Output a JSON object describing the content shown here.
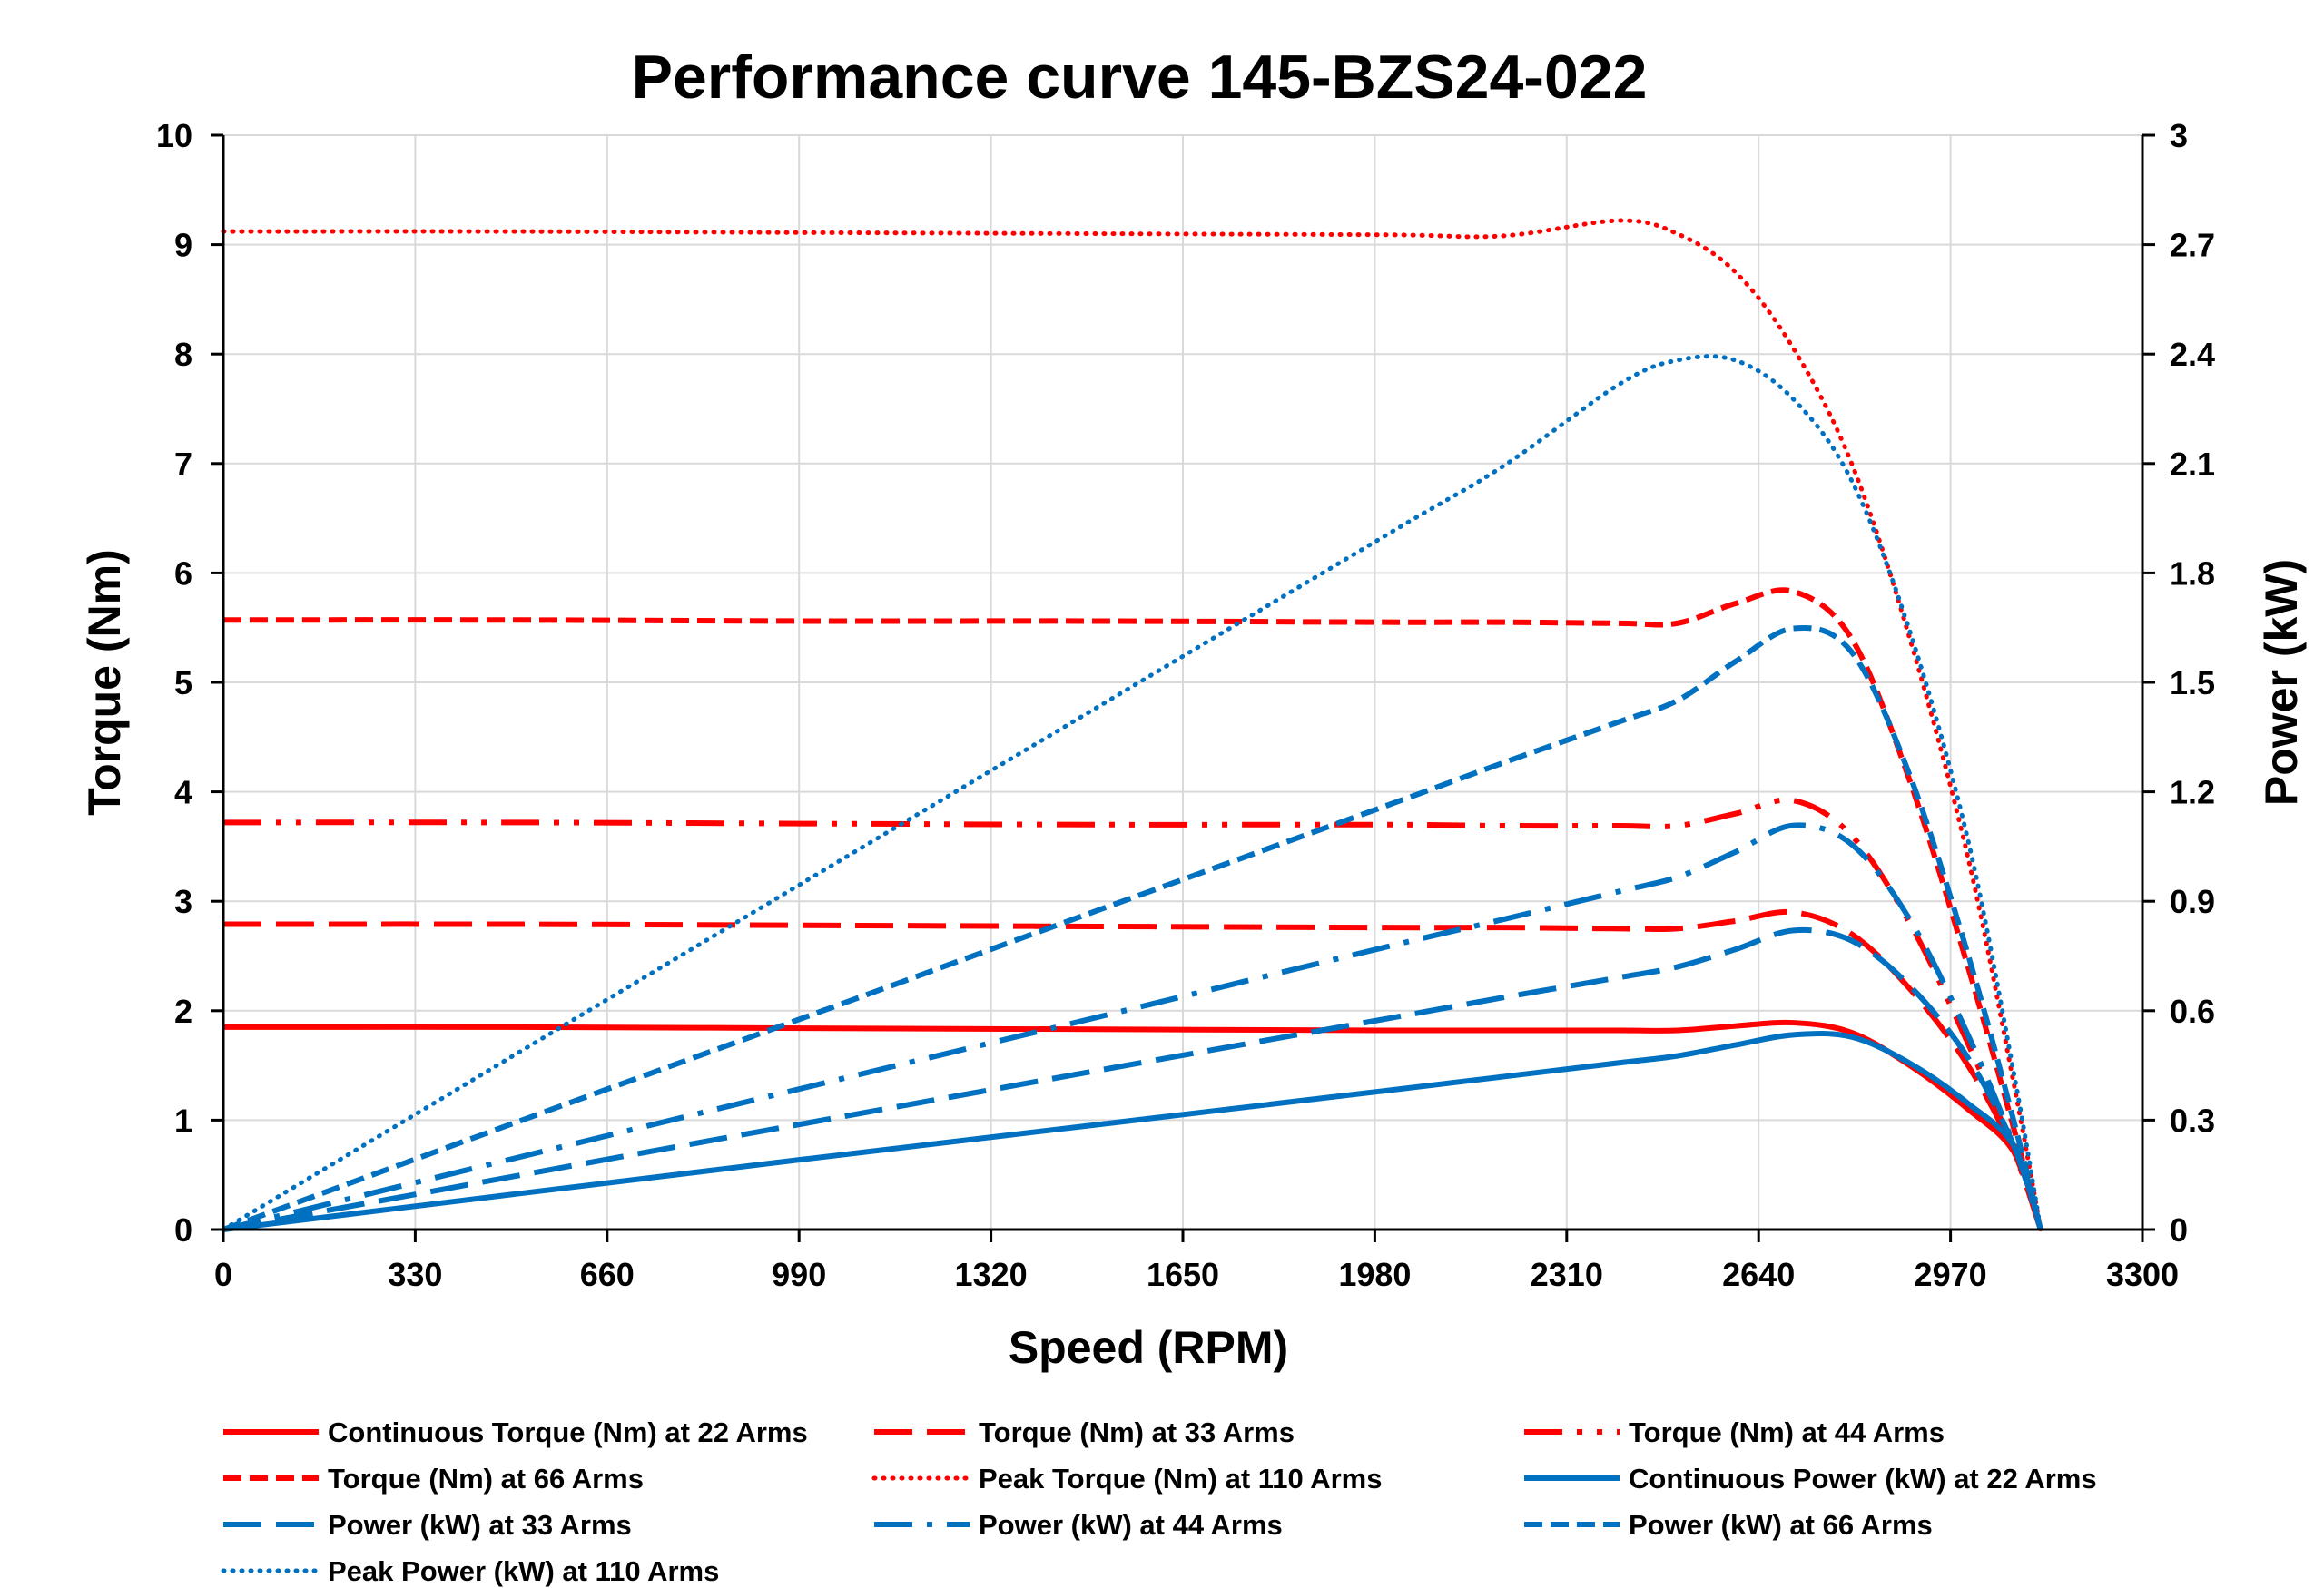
{
  "chart_data": {
    "type": "line",
    "title": "Performance curve 145-BZS24-022",
    "xlabel": "Speed (RPM)",
    "ylabel": "Torque (Nm)",
    "y2label": "Power (kW)",
    "xlim": [
      0,
      3300
    ],
    "ylim": [
      0,
      10
    ],
    "y2lim": [
      0,
      3
    ],
    "xticks": [
      0,
      330,
      660,
      990,
      1320,
      1650,
      1980,
      2310,
      2640,
      2970,
      3300
    ],
    "yticks": [
      0,
      1,
      2,
      3,
      4,
      5,
      6,
      7,
      8,
      9,
      10
    ],
    "y2ticks": [
      "0",
      "0.3",
      "0.6",
      "0.9",
      "1.2",
      "1.5",
      "1.8",
      "2.1",
      "2.4",
      "2.7",
      "3"
    ],
    "grid": true,
    "legend_placement": "bottom",
    "colors": {
      "torque": "#ff0000",
      "power": "#0070c0"
    },
    "x": [
      0,
      500,
      1000,
      1500,
      2000,
      2200,
      2400,
      2500,
      2600,
      2700,
      2800,
      2900,
      3000,
      3080,
      3125
    ],
    "series": [
      {
        "name": "Continuous Torque (Nm) at 22 Arms",
        "axis": "left",
        "color": "#ff0000",
        "dash": "solid",
        "values": [
          1.85,
          1.85,
          1.84,
          1.83,
          1.82,
          1.82,
          1.82,
          1.82,
          1.86,
          1.89,
          1.8,
          1.5,
          1.1,
          0.7,
          0
        ]
      },
      {
        "name": "Torque (Nm) at 33 Arms",
        "axis": "left",
        "color": "#ff0000",
        "dash": "long-dash",
        "values": [
          2.79,
          2.79,
          2.78,
          2.77,
          2.76,
          2.76,
          2.75,
          2.75,
          2.82,
          2.9,
          2.7,
          2.2,
          1.5,
          0.7,
          0
        ]
      },
      {
        "name": "Torque (Nm) at 44 Arms",
        "axis": "left",
        "color": "#ff0000",
        "dash": "long-dash-dot-dot",
        "values": [
          3.72,
          3.72,
          3.71,
          3.7,
          3.7,
          3.69,
          3.69,
          3.69,
          3.8,
          3.92,
          3.6,
          2.8,
          1.7,
          0.7,
          0
        ]
      },
      {
        "name": "Torque (Nm) at 66 Arms",
        "axis": "left",
        "color": "#ff0000",
        "dash": "dash",
        "values": [
          5.57,
          5.57,
          5.56,
          5.56,
          5.55,
          5.55,
          5.54,
          5.54,
          5.72,
          5.83,
          5.4,
          4.1,
          2.4,
          0.9,
          0
        ]
      },
      {
        "name": "Peak Torque (Nm) at 110 Arms",
        "axis": "left",
        "color": "#ff0000",
        "dash": "dot",
        "values": [
          9.12,
          9.12,
          9.11,
          9.1,
          9.09,
          9.08,
          9.22,
          9.1,
          8.75,
          8.05,
          7.0,
          5.4,
          3.4,
          1.3,
          0
        ]
      },
      {
        "name": "Continuous Power (kW) at 22 Arms",
        "axis": "right",
        "color": "#0070c0",
        "dash": "solid",
        "values": [
          0,
          0.097,
          0.193,
          0.287,
          0.381,
          0.419,
          0.457,
          0.476,
          0.506,
          0.534,
          0.528,
          0.456,
          0.346,
          0.226,
          0
        ]
      },
      {
        "name": "Power (kW) at 33 Arms",
        "axis": "right",
        "color": "#0070c0",
        "dash": "long-dash",
        "values": [
          0,
          0.146,
          0.291,
          0.435,
          0.578,
          0.636,
          0.691,
          0.72,
          0.768,
          0.82,
          0.792,
          0.668,
          0.471,
          0.226,
          0
        ]
      },
      {
        "name": "Power (kW) at 44 Arms",
        "axis": "right",
        "color": "#0070c0",
        "dash": "long-dash-dot",
        "values": [
          0,
          0.195,
          0.389,
          0.581,
          0.775,
          0.85,
          0.927,
          0.966,
          1.035,
          1.108,
          1.056,
          0.85,
          0.534,
          0.226,
          0
        ]
      },
      {
        "name": "Power (kW) at 66 Arms",
        "axis": "right",
        "color": "#0070c0",
        "dash": "dash",
        "values": [
          0,
          0.292,
          0.582,
          0.873,
          1.162,
          1.279,
          1.392,
          1.45,
          1.557,
          1.648,
          1.583,
          1.245,
          0.754,
          0.29,
          0
        ]
      },
      {
        "name": "Peak Power (kW) at 110 Arms",
        "axis": "right",
        "color": "#0070c0",
        "dash": "dot",
        "values": [
          0,
          0.478,
          0.954,
          1.429,
          1.904,
          2.092,
          2.317,
          2.383,
          2.383,
          2.276,
          2.053,
          1.64,
          1.068,
          0.419,
          0
        ]
      }
    ]
  }
}
